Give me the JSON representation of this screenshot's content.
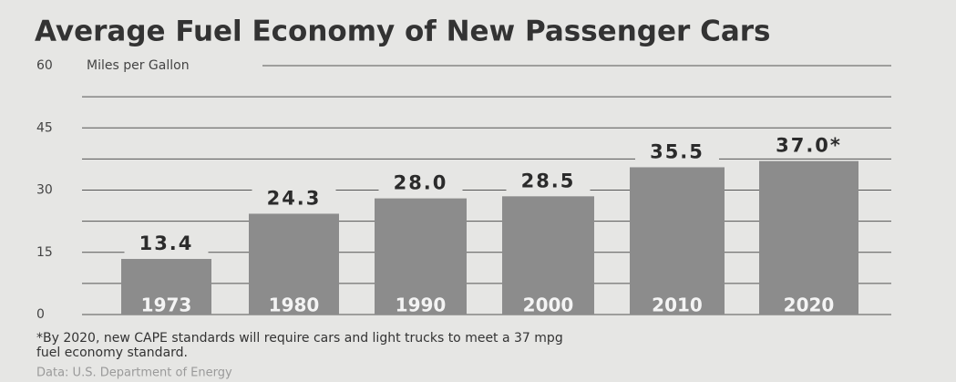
{
  "chart_data": {
    "type": "bar",
    "title": "Average Fuel Economy of New Passenger Cars",
    "y_axis_label": "Miles per Gallon",
    "categories": [
      "1973",
      "1980",
      "1990",
      "2000",
      "2010",
      "2020"
    ],
    "values": [
      13.4,
      24.3,
      28.0,
      28.5,
      35.5,
      37.0
    ],
    "value_labels": [
      "13.4",
      "24.3",
      "28.0",
      "28.5",
      "35.5",
      "37.0*"
    ],
    "color": "#8c8c8c",
    "ylim": [
      0,
      60
    ],
    "yticks": [
      0,
      15,
      30,
      45,
      60
    ],
    "yminor_ticks": [
      7.5,
      22.5,
      37.5,
      52.5
    ],
    "grid": true,
    "footnote": [
      "*By 2020, new CAPE standards will require cars and light trucks to meet a 37 mpg",
      "fuel economy standard."
    ],
    "source": "Data: U.S. Department of Energy"
  }
}
